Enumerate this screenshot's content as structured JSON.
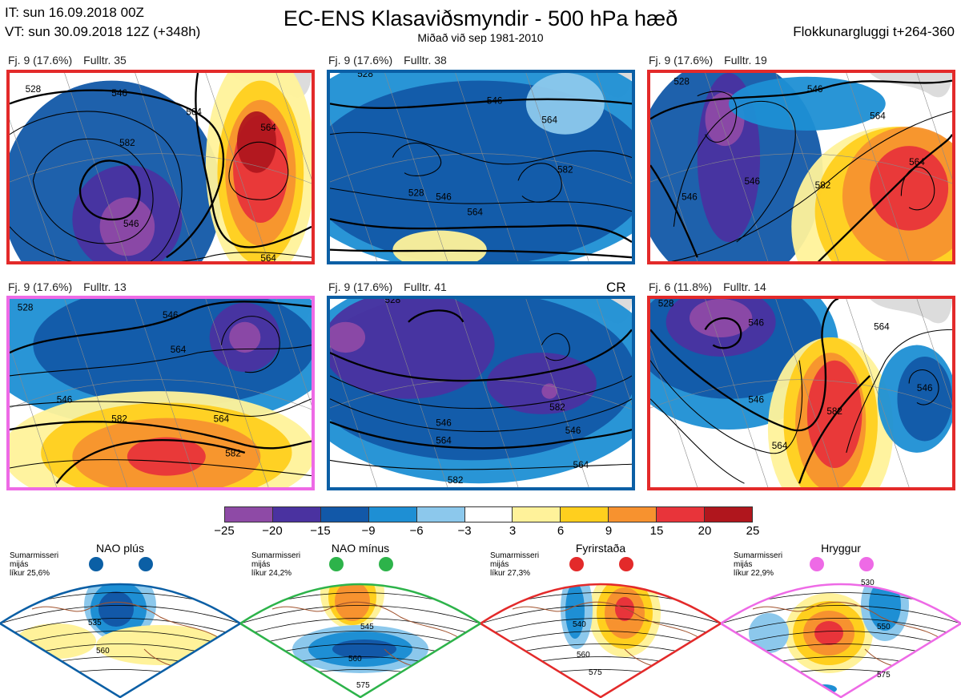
{
  "header": {
    "it_line": "IT: sun 16.09.2018 00Z",
    "vt_line": "VT: sun 30.09.2018 12Z  (+348h)",
    "title": "EC-ENS Klasaviðsmyndir - 500 hPa hæð",
    "subtitle": "Miðað við sep 1981-2010",
    "window": "Flokkunargluggi t+264-360"
  },
  "panels": [
    {
      "cluster": "Fj. 9 (17.6%)",
      "rep": "Fulltr. 35",
      "regime": "Fyrirstaða",
      "border": "#e32a2a",
      "contours": [
        "528",
        "546",
        "564",
        "582",
        "546",
        "564",
        "564"
      ]
    },
    {
      "cluster": "Fj. 9 (17.6%)",
      "rep": "Fulltr. 38",
      "regime": "NAO plús",
      "border": "#0b5fa5",
      "contours": [
        "528",
        "546",
        "564",
        "582",
        "528",
        "546",
        "564"
      ]
    },
    {
      "cluster": "Fj. 9 (17.6%)",
      "rep": "Fulltr. 19",
      "regime": "Fyrirstaða",
      "border": "#e32a2a",
      "contours": [
        "528",
        "546",
        "564",
        "582",
        "564",
        "546",
        "546"
      ]
    },
    {
      "cluster": "Fj. 9 (17.6%)",
      "rep": "Fulltr. 13",
      "regime": "Hryggur",
      "border": "#ee6ae6",
      "contours": [
        "528",
        "546",
        "564",
        "582",
        "546",
        "564",
        "582"
      ]
    },
    {
      "cluster": "Fj. 9 (17.6%)",
      "rep": "Fulltr. 41",
      "regime": "NAO plús",
      "border": "#0b5fa5",
      "contours": [
        "528",
        "546",
        "564",
        "582",
        "546",
        "564",
        "582"
      ]
    },
    {
      "cluster": "Fj. 6 (11.8%)",
      "rep": "Fulltr. 14",
      "regime": "Fyrirstaða",
      "border": "#e32a2a",
      "contours": [
        "528",
        "546",
        "564",
        "582",
        "546",
        "546",
        "564"
      ]
    }
  ],
  "cr_label": "CR",
  "colorbar": {
    "colors": [
      "#8e4aa6",
      "#4a32a0",
      "#1258a8",
      "#1e8fd4",
      "#8cc8ec",
      "#ffffff",
      "#fff29a",
      "#ffcf1e",
      "#f7922f",
      "#e8343a",
      "#b0161d"
    ],
    "ticks": [
      "−25",
      "−20",
      "−15",
      "−9",
      "−6",
      "−3",
      "3",
      "6",
      "9",
      "15",
      "20",
      "25"
    ]
  },
  "regimes": [
    {
      "name": "NAO plús",
      "info": [
        "Sumarmisseri",
        "mijás",
        "líkur 25,6%"
      ],
      "color": "#0b5fa5",
      "labels": [
        "535",
        "560"
      ]
    },
    {
      "name": "NAO mínus",
      "info": [
        "Sumarmisseri",
        "mijás",
        "líkur 24,2%"
      ],
      "color": "#2db34a",
      "labels": [
        "545",
        "560",
        "575"
      ]
    },
    {
      "name": "Fyrirstaða",
      "info": [
        "Sumarmisseri",
        "mijás",
        "líkur 27,3%"
      ],
      "color": "#e32a2a",
      "labels": [
        "540",
        "560",
        "575"
      ]
    },
    {
      "name": "Hryggur",
      "info": [
        "Sumarmisseri",
        "mijás",
        "líkur 22,9%"
      ],
      "color": "#ee6ae6",
      "labels": [
        "530",
        "550",
        "575"
      ]
    }
  ]
}
